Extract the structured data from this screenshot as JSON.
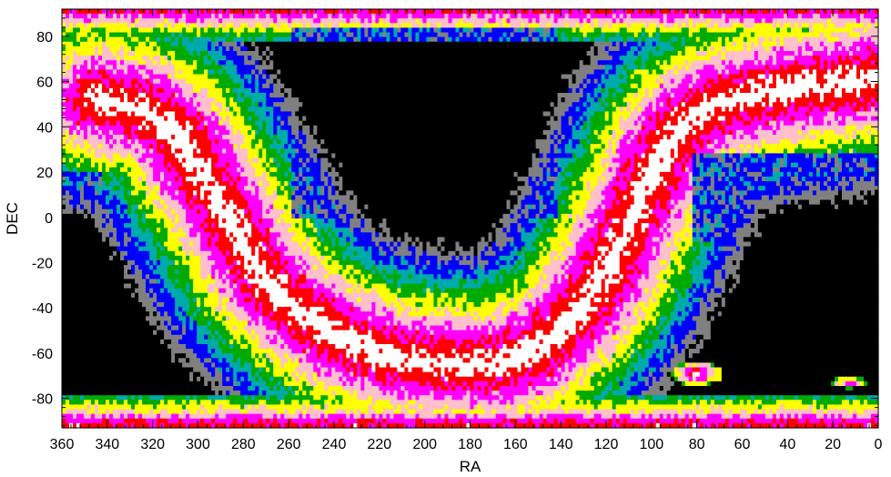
{
  "chart_data": {
    "type": "heatmap",
    "title": "",
    "xlabel": "RA",
    "ylabel": "DEC",
    "xlim": [
      360,
      0
    ],
    "ylim": [
      -93,
      92
    ],
    "x_reversed": true,
    "x_ticks": [
      360,
      340,
      320,
      300,
      280,
      260,
      240,
      220,
      200,
      180,
      160,
      140,
      120,
      100,
      80,
      60,
      40,
      20,
      0
    ],
    "y_ticks": [
      80,
      60,
      40,
      20,
      0,
      -20,
      -40,
      -60,
      -80
    ],
    "x_minor_step": 4,
    "y_minor_step": 4,
    "grid": false,
    "legend": "none",
    "colorscale": [
      "#000000",
      "#808080",
      "#0000ff",
      "#00aaaa",
      "#00aa00",
      "#ffff00",
      "#ffc0cb",
      "#ff00ff",
      "#ff0000",
      "#ffffff"
    ],
    "feature_bands": [
      {
        "name": "galactic-plane-west",
        "points": [
          [
            345,
            52
          ],
          [
            325,
            48
          ],
          [
            310,
            38
          ],
          [
            300,
            22
          ],
          [
            290,
            5
          ],
          [
            280,
            -12
          ],
          [
            270,
            -28
          ],
          [
            255,
            -42
          ],
          [
            240,
            -52
          ],
          [
            220,
            -60
          ],
          [
            200,
            -64
          ],
          [
            180,
            -65
          ],
          [
            165,
            -64
          ],
          [
            150,
            -58
          ],
          [
            135,
            -45
          ],
          [
            122,
            -28
          ],
          [
            112,
            -8
          ],
          [
            102,
            14
          ],
          [
            95,
            30
          ],
          [
            85,
            42
          ],
          [
            70,
            50
          ],
          [
            50,
            55
          ],
          [
            30,
            58
          ],
          [
            10,
            60
          ],
          [
            0,
            62
          ]
        ]
      }
    ],
    "blobs": [
      {
        "ra": 80,
        "dec": -69,
        "dra": 7,
        "ddec": 3.5,
        "peak": 9
      },
      {
        "ra": 13,
        "dec": -73,
        "dra": 5,
        "ddec": 1.6,
        "peak": 8.5
      }
    ],
    "dark_regions": [
      {
        "ra_min": 142,
        "ra_max": 258,
        "dec_min": 0,
        "dec_max": 84
      },
      {
        "ra_min": 0,
        "ra_max": 82,
        "dec_min": -10,
        "dec_max": 28
      },
      {
        "ra_min": 342,
        "ra_max": 360,
        "dec_min": -10,
        "dec_max": 20
      }
    ]
  }
}
